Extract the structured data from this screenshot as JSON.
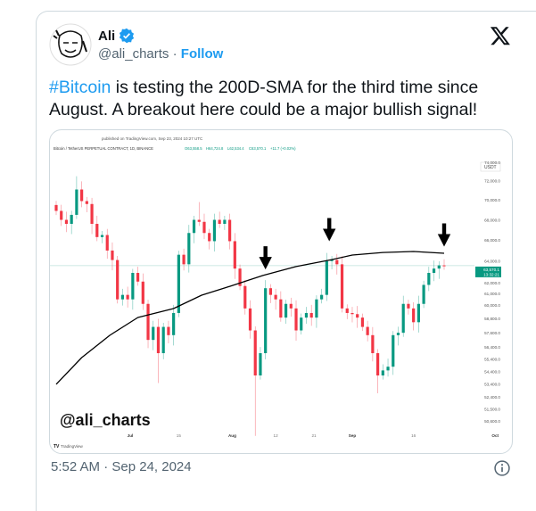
{
  "author": {
    "name": "Ali",
    "verified": true,
    "handle": "@ali_charts",
    "separator": "·",
    "follow_label": "Follow"
  },
  "tweet": {
    "hashtag": "#Bitcoin",
    "text": " is testing the 200D-SMA for the third time since August. A breakout here could be a major bullish signal!"
  },
  "footer": {
    "timestamp": "5:52 AM · Sep 24, 2024"
  },
  "colors": {
    "link": "#1d9bf0",
    "up": "#089981",
    "down": "#f23645",
    "sma": "#000000"
  },
  "chart_data": {
    "type": "candlestick",
    "published": "published on TradingView.com, Sep 23, 2024 10:27 UTC",
    "symbol": "Bitcoin / TetherUS PERPETUAL CONTRACT, 1D, BINANCE",
    "ohlc_readout": {
      "O": "O63,558.5",
      "H": "H64,724.8",
      "L": "L62,534.4",
      "C": "C63,570.1",
      "change": "+11.7 (+0.02%)"
    },
    "currency": "USDT",
    "y_scale": "log",
    "ylim": [
      49500,
      75500
    ],
    "y_ticks": [
      "74,000.0",
      "72,000.0",
      "70,000.0",
      "68,000.0",
      "66,000.0",
      "64,000.0",
      "62,000.0",
      "61,000.0",
      "60,000.0",
      "58,800.0",
      "57,600.0",
      "56,400.0",
      "55,400.0",
      "54,400.0",
      "53,400.0",
      "52,400.0",
      "51,500.0",
      "50,600.0"
    ],
    "last_price": {
      "price": 63570.1,
      "label": "63,570.1",
      "countdown": "13:32:21"
    },
    "x_ticks": [
      {
        "label": "Jul",
        "index": 14.5
      },
      {
        "label": "15",
        "index": 24
      },
      {
        "label": "Aug",
        "index": 34.5
      },
      {
        "label": "12",
        "index": 43
      },
      {
        "label": "21",
        "index": 50.5
      },
      {
        "label": "Sep",
        "index": 58
      },
      {
        "label": "16",
        "index": 70
      },
      {
        "label": "Oct",
        "index": 86
      }
    ],
    "first_open": 69500,
    "closes": [
      68900,
      68000,
      67600,
      68500,
      71100,
      69900,
      69600,
      67600,
      66300,
      66500,
      65000,
      64100,
      60500,
      60900,
      60500,
      62900,
      62100,
      60100,
      57000,
      58100,
      55900,
      58100,
      57400,
      59300,
      64600,
      63700,
      66700,
      68000,
      67800,
      66700,
      65900,
      68000,
      67600,
      68000,
      65900,
      63300,
      61700,
      59700,
      57800,
      54100,
      55900,
      61500,
      60900,
      60500,
      58900,
      60100,
      59700,
      57800,
      58900,
      59300,
      58900,
      60500,
      60900,
      64000,
      64100,
      63700,
      59700,
      59300,
      59200,
      58900,
      58100,
      57400,
      55900,
      54100,
      54500,
      54800,
      57400,
      57600,
      60100,
      59700,
      58500,
      60100,
      61800,
      62900,
      63300,
      63600,
      63570.1
    ],
    "wick_extremes": [
      {
        "index": 4,
        "high": 72500
      },
      {
        "index": 20,
        "low": 53500
      },
      {
        "index": 39,
        "low": 49500
      },
      {
        "index": 28,
        "high": 69800
      },
      {
        "index": 63,
        "low": 52700
      }
    ],
    "sma_200d": [
      [
        0,
        53400
      ],
      [
        5,
        55540
      ],
      [
        10.5,
        57390
      ],
      [
        16,
        58910
      ],
      [
        23,
        59690
      ],
      [
        28.5,
        60870
      ],
      [
        34,
        61670
      ],
      [
        40.5,
        62660
      ],
      [
        47,
        63490
      ],
      [
        54,
        64140
      ],
      [
        58,
        64570
      ],
      [
        64,
        64820
      ],
      [
        70,
        64910
      ],
      [
        76,
        64740
      ]
    ],
    "annotations": [
      {
        "type": "arrow-down",
        "index": 41
      },
      {
        "type": "arrow-down",
        "index": 53.5
      },
      {
        "type": "arrow-down",
        "index": 76
      }
    ],
    "watermark": "@ali_charts",
    "brand": "TradingView"
  }
}
